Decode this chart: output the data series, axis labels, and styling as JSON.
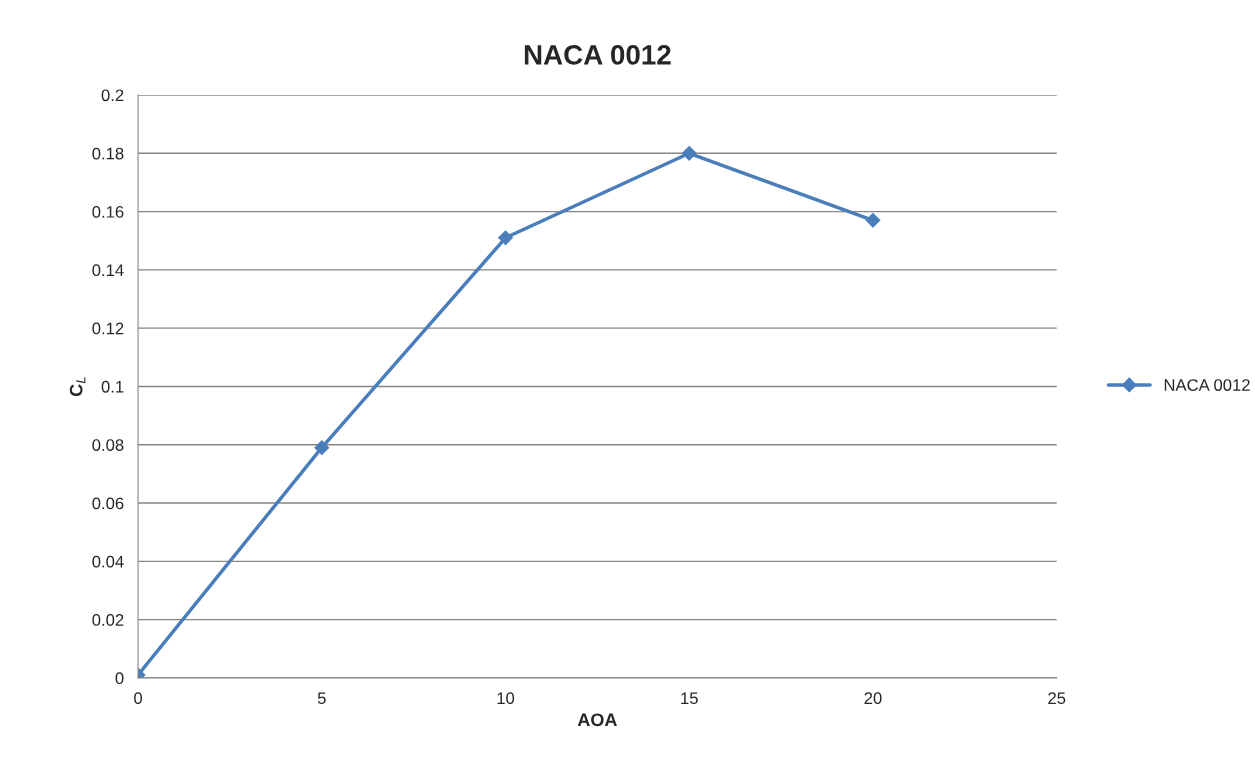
{
  "chart_data": {
    "type": "line",
    "title": "NACA 0012",
    "xlabel": "AOA",
    "ylabel": "C$_{L}$",
    "x": [
      0,
      5,
      10,
      15,
      20
    ],
    "series": [
      {
        "name": "NACA 0012",
        "color": "#4a7ebb",
        "values": [
          0.001,
          0.079,
          0.151,
          0.18,
          0.157
        ]
      }
    ],
    "xlim": [
      0,
      25
    ],
    "xticks": [
      0,
      5,
      10,
      15,
      20,
      25
    ],
    "ylim": [
      0,
      0.2
    ],
    "yticks": [
      0,
      0.02,
      0.04,
      0.06,
      0.08,
      0.1,
      0.12,
      0.14,
      0.16,
      0.18,
      0.2
    ],
    "grid": "y",
    "legend": "right",
    "marker": "diamond",
    "line_style": "solid"
  }
}
